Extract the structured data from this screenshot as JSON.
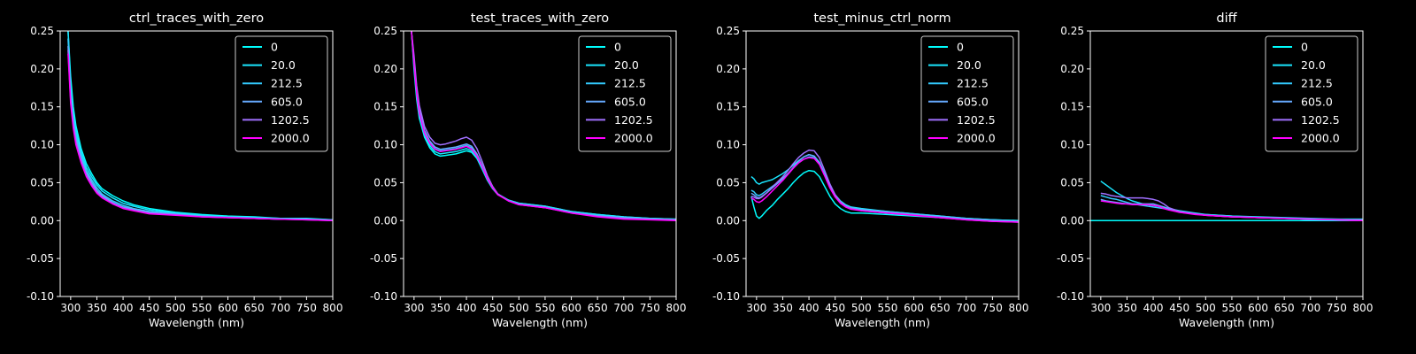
{
  "figure": {
    "background": "#000000",
    "foreground": "#ffffff"
  },
  "legend": {
    "placement": "upper-right",
    "entries": [
      {
        "label": "0",
        "color": "#00ffff"
      },
      {
        "label": "20.0",
        "color": "#1ae5ff"
      },
      {
        "label": "212.5",
        "color": "#33ccff"
      },
      {
        "label": "605.0",
        "color": "#66aaff"
      },
      {
        "label": "1202.5",
        "color": "#a070ff"
      },
      {
        "label": "2000.0",
        "color": "#ff00ff"
      }
    ]
  },
  "chart_data": [
    {
      "type": "line",
      "title": "ctrl_traces_with_zero",
      "xlabel": "Wavelength (nm)",
      "ylabel": "",
      "xlim": [
        280,
        800
      ],
      "ylim": [
        -0.1,
        0.25
      ],
      "xticks": [
        300,
        350,
        400,
        450,
        500,
        550,
        600,
        650,
        700,
        750,
        800
      ],
      "yticks": [
        -0.1,
        -0.05,
        0.0,
        0.05,
        0.1,
        0.15,
        0.2,
        0.25
      ],
      "grid": false,
      "legend": "upper-right",
      "x": [
        295,
        300,
        305,
        310,
        320,
        330,
        340,
        350,
        360,
        380,
        400,
        420,
        450,
        500,
        550,
        600,
        650,
        700,
        750,
        800
      ],
      "series": [
        {
          "name": "0",
          "values": [
            0.25,
            0.19,
            0.15,
            0.125,
            0.095,
            0.075,
            0.062,
            0.05,
            0.042,
            0.033,
            0.026,
            0.021,
            0.016,
            0.011,
            0.008,
            0.006,
            0.005,
            0.003,
            0.003,
            0.001
          ]
        },
        {
          "name": "20.0",
          "values": [
            0.25,
            0.18,
            0.14,
            0.118,
            0.09,
            0.07,
            0.058,
            0.047,
            0.039,
            0.03,
            0.023,
            0.019,
            0.014,
            0.01,
            0.007,
            0.005,
            0.004,
            0.003,
            0.002,
            0.001
          ]
        },
        {
          "name": "212.5",
          "values": [
            0.24,
            0.17,
            0.135,
            0.112,
            0.086,
            0.066,
            0.054,
            0.043,
            0.035,
            0.026,
            0.02,
            0.016,
            0.012,
            0.009,
            0.006,
            0.005,
            0.003,
            0.002,
            0.002,
            0.001
          ]
        },
        {
          "name": "605.0",
          "values": [
            0.23,
            0.165,
            0.13,
            0.108,
            0.082,
            0.063,
            0.051,
            0.04,
            0.033,
            0.024,
            0.018,
            0.015,
            0.011,
            0.008,
            0.006,
            0.004,
            0.003,
            0.002,
            0.002,
            0.0
          ]
        },
        {
          "name": "1202.5",
          "values": [
            0.225,
            0.16,
            0.126,
            0.104,
            0.079,
            0.06,
            0.048,
            0.038,
            0.031,
            0.023,
            0.017,
            0.014,
            0.01,
            0.008,
            0.005,
            0.004,
            0.003,
            0.002,
            0.001,
            0.0
          ]
        },
        {
          "name": "2000.0",
          "values": [
            0.22,
            0.155,
            0.122,
            0.1,
            0.076,
            0.058,
            0.046,
            0.036,
            0.03,
            0.022,
            0.016,
            0.013,
            0.009,
            0.007,
            0.005,
            0.004,
            0.003,
            0.002,
            0.001,
            0.0
          ]
        }
      ]
    },
    {
      "type": "line",
      "title": "test_traces_with_zero",
      "xlabel": "Wavelength (nm)",
      "ylabel": "",
      "xlim": [
        280,
        800
      ],
      "ylim": [
        -0.1,
        0.25
      ],
      "xticks": [
        300,
        350,
        400,
        450,
        500,
        550,
        600,
        650,
        700,
        750,
        800
      ],
      "yticks": [
        -0.1,
        -0.05,
        0.0,
        0.05,
        0.1,
        0.15,
        0.2,
        0.25
      ],
      "grid": false,
      "legend": "upper-right",
      "x": [
        295,
        300,
        305,
        310,
        320,
        330,
        340,
        350,
        360,
        370,
        380,
        390,
        400,
        410,
        420,
        430,
        440,
        450,
        460,
        480,
        500,
        550,
        600,
        650,
        700,
        750,
        800
      ],
      "series": [
        {
          "name": "0",
          "values": [
            0.25,
            0.2,
            0.16,
            0.135,
            0.11,
            0.096,
            0.088,
            0.085,
            0.086,
            0.087,
            0.088,
            0.09,
            0.092,
            0.09,
            0.082,
            0.068,
            0.053,
            0.042,
            0.034,
            0.027,
            0.023,
            0.019,
            0.012,
            0.008,
            0.005,
            0.003,
            0.002
          ]
        },
        {
          "name": "20.0",
          "values": [
            0.25,
            0.205,
            0.165,
            0.14,
            0.113,
            0.099,
            0.091,
            0.088,
            0.089,
            0.09,
            0.091,
            0.093,
            0.095,
            0.092,
            0.084,
            0.07,
            0.054,
            0.043,
            0.035,
            0.027,
            0.023,
            0.019,
            0.012,
            0.008,
            0.005,
            0.003,
            0.002
          ]
        },
        {
          "name": "212.5",
          "values": [
            0.25,
            0.21,
            0.17,
            0.144,
            0.117,
            0.103,
            0.095,
            0.092,
            0.093,
            0.094,
            0.095,
            0.097,
            0.099,
            0.096,
            0.087,
            0.072,
            0.056,
            0.044,
            0.035,
            0.027,
            0.022,
            0.018,
            0.011,
            0.007,
            0.004,
            0.002,
            0.001
          ]
        },
        {
          "name": "605.0",
          "values": [
            0.25,
            0.212,
            0.172,
            0.146,
            0.119,
            0.105,
            0.097,
            0.094,
            0.095,
            0.096,
            0.097,
            0.099,
            0.101,
            0.098,
            0.088,
            0.073,
            0.056,
            0.044,
            0.035,
            0.026,
            0.022,
            0.018,
            0.011,
            0.006,
            0.004,
            0.002,
            0.001
          ]
        },
        {
          "name": "1202.5",
          "values": [
            0.25,
            0.218,
            0.178,
            0.152,
            0.124,
            0.11,
            0.102,
            0.1,
            0.101,
            0.103,
            0.105,
            0.108,
            0.11,
            0.106,
            0.095,
            0.078,
            0.059,
            0.045,
            0.035,
            0.026,
            0.021,
            0.017,
            0.01,
            0.006,
            0.003,
            0.002,
            0.001
          ]
        },
        {
          "name": "2000.0",
          "values": [
            0.25,
            0.208,
            0.168,
            0.142,
            0.115,
            0.102,
            0.094,
            0.091,
            0.092,
            0.093,
            0.094,
            0.096,
            0.098,
            0.094,
            0.085,
            0.071,
            0.055,
            0.043,
            0.034,
            0.026,
            0.021,
            0.017,
            0.01,
            0.005,
            0.002,
            0.001,
            0.0
          ]
        }
      ]
    },
    {
      "type": "line",
      "title": "test_minus_ctrl_norm",
      "xlabel": "Wavelength (nm)",
      "ylabel": "",
      "xlim": [
        280,
        800
      ],
      "ylim": [
        -0.1,
        0.25
      ],
      "xticks": [
        300,
        350,
        400,
        450,
        500,
        550,
        600,
        650,
        700,
        750,
        800
      ],
      "yticks": [
        -0.1,
        -0.05,
        0.0,
        0.05,
        0.1,
        0.15,
        0.2,
        0.25
      ],
      "grid": false,
      "legend": "upper-right",
      "x": [
        290,
        295,
        300,
        305,
        310,
        320,
        330,
        340,
        350,
        360,
        370,
        380,
        390,
        400,
        410,
        420,
        430,
        440,
        450,
        460,
        470,
        480,
        500,
        550,
        600,
        650,
        700,
        750,
        800
      ],
      "series": [
        {
          "name": "0",
          "values": [
            0.032,
            0.018,
            0.006,
            0.003,
            0.006,
            0.014,
            0.02,
            0.028,
            0.035,
            0.042,
            0.05,
            0.057,
            0.063,
            0.066,
            0.065,
            0.058,
            0.045,
            0.032,
            0.022,
            0.016,
            0.012,
            0.01,
            0.01,
            0.008,
            0.006,
            0.004,
            0.002,
            0.001,
            0.0
          ]
        },
        {
          "name": "20.0",
          "values": [
            0.058,
            0.055,
            0.05,
            0.048,
            0.05,
            0.052,
            0.054,
            0.058,
            0.062,
            0.067,
            0.073,
            0.079,
            0.084,
            0.087,
            0.085,
            0.077,
            0.062,
            0.046,
            0.034,
            0.026,
            0.021,
            0.018,
            0.016,
            0.012,
            0.009,
            0.006,
            0.003,
            0.001,
            0.0
          ]
        },
        {
          "name": "212.5",
          "values": [
            0.04,
            0.038,
            0.034,
            0.033,
            0.035,
            0.04,
            0.045,
            0.05,
            0.056,
            0.062,
            0.069,
            0.076,
            0.081,
            0.084,
            0.083,
            0.075,
            0.06,
            0.045,
            0.033,
            0.025,
            0.02,
            0.017,
            0.015,
            0.012,
            0.009,
            0.006,
            0.003,
            0.001,
            -0.001
          ]
        },
        {
          "name": "605.0",
          "values": [
            0.036,
            0.034,
            0.031,
            0.03,
            0.032,
            0.037,
            0.043,
            0.049,
            0.055,
            0.062,
            0.07,
            0.078,
            0.084,
            0.087,
            0.085,
            0.076,
            0.06,
            0.044,
            0.032,
            0.024,
            0.019,
            0.017,
            0.014,
            0.011,
            0.008,
            0.005,
            0.002,
            0.0,
            -0.001
          ]
        },
        {
          "name": "1202.5",
          "values": [
            0.032,
            0.031,
            0.029,
            0.029,
            0.031,
            0.037,
            0.044,
            0.051,
            0.058,
            0.066,
            0.075,
            0.083,
            0.089,
            0.093,
            0.092,
            0.083,
            0.066,
            0.048,
            0.034,
            0.025,
            0.019,
            0.016,
            0.013,
            0.01,
            0.007,
            0.004,
            0.001,
            -0.001,
            -0.002
          ]
        },
        {
          "name": "2000.0",
          "values": [
            0.03,
            0.028,
            0.025,
            0.024,
            0.026,
            0.032,
            0.039,
            0.046,
            0.053,
            0.061,
            0.069,
            0.076,
            0.081,
            0.083,
            0.082,
            0.074,
            0.059,
            0.043,
            0.031,
            0.023,
            0.018,
            0.015,
            0.013,
            0.01,
            0.007,
            0.004,
            0.001,
            -0.001,
            -0.002
          ]
        }
      ]
    },
    {
      "type": "line",
      "title": "diff",
      "xlabel": "Wavelength (nm)",
      "ylabel": "",
      "xlim": [
        280,
        800
      ],
      "ylim": [
        -0.1,
        0.25
      ],
      "xticks": [
        300,
        350,
        400,
        450,
        500,
        550,
        600,
        650,
        700,
        750,
        800
      ],
      "yticks": [
        -0.1,
        -0.05,
        0.0,
        0.05,
        0.1,
        0.15,
        0.2,
        0.25
      ],
      "grid": false,
      "legend": "upper-right",
      "x": [
        275,
        300,
        310,
        320,
        330,
        340,
        350,
        360,
        370,
        380,
        390,
        400,
        410,
        420,
        430,
        450,
        480,
        500,
        550,
        600,
        650,
        700,
        750,
        800
      ],
      "series": [
        {
          "name": "0",
          "values": [
            0.0,
            0.0,
            0.0,
            0.0,
            0.0,
            0.0,
            0.0,
            0.0,
            0.0,
            0.0,
            0.0,
            0.0,
            0.0,
            0.0,
            0.0,
            0.0,
            0.0,
            0.0,
            0.0,
            0.0,
            0.0,
            0.0,
            0.0,
            0.0
          ]
        },
        {
          "name": "20.0",
          "values": [
            null,
            0.052,
            0.047,
            0.042,
            0.037,
            0.033,
            0.029,
            0.026,
            0.024,
            0.022,
            0.021,
            0.02,
            0.019,
            0.018,
            0.016,
            0.013,
            0.01,
            0.008,
            0.006,
            0.005,
            0.004,
            0.003,
            0.002,
            0.002
          ]
        },
        {
          "name": "212.5",
          "values": [
            null,
            0.033,
            0.031,
            0.029,
            0.028,
            0.026,
            0.024,
            0.022,
            0.021,
            0.02,
            0.019,
            0.018,
            0.017,
            0.016,
            0.015,
            0.012,
            0.009,
            0.008,
            0.006,
            0.004,
            0.003,
            0.002,
            0.002,
            0.001
          ]
        },
        {
          "name": "605.0",
          "values": [
            null,
            0.028,
            0.026,
            0.025,
            0.024,
            0.023,
            0.022,
            0.022,
            0.022,
            0.022,
            0.022,
            0.022,
            0.02,
            0.018,
            0.015,
            0.011,
            0.009,
            0.007,
            0.005,
            0.004,
            0.003,
            0.002,
            0.001,
            0.001
          ]
        },
        {
          "name": "1202.5",
          "values": [
            null,
            0.036,
            0.035,
            0.033,
            0.032,
            0.031,
            0.03,
            0.03,
            0.03,
            0.03,
            0.029,
            0.028,
            0.026,
            0.022,
            0.017,
            0.012,
            0.009,
            0.007,
            0.005,
            0.004,
            0.003,
            0.002,
            0.001,
            0.0
          ]
        },
        {
          "name": "2000.0",
          "values": [
            null,
            0.026,
            0.025,
            0.024,
            0.023,
            0.022,
            0.022,
            0.021,
            0.021,
            0.021,
            0.021,
            0.02,
            0.019,
            0.016,
            0.014,
            0.011,
            0.008,
            0.007,
            0.005,
            0.004,
            0.003,
            0.002,
            0.001,
            0.0
          ]
        }
      ]
    }
  ]
}
